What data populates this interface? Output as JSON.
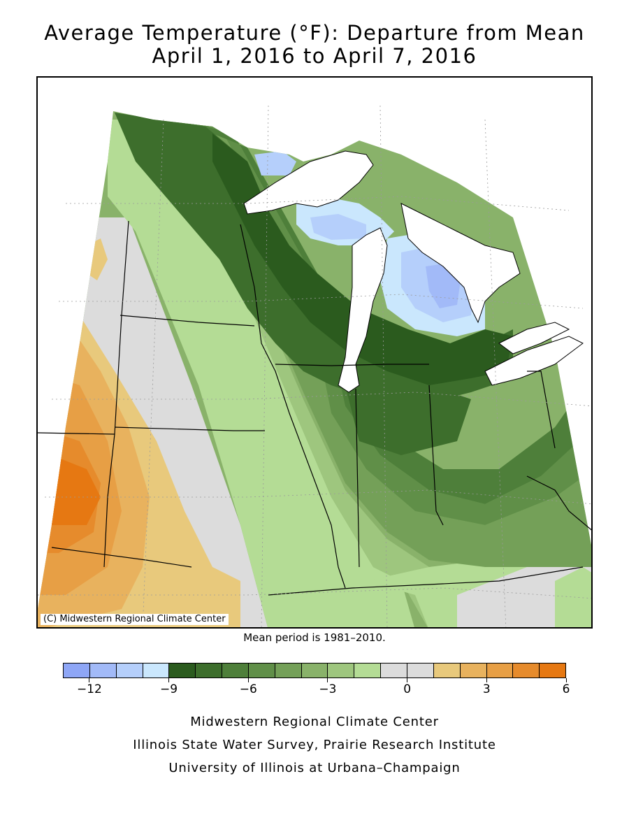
{
  "title": {
    "line1": "Average Temperature (°F): Departure from Mean",
    "line2": "April 1, 2016 to April 7, 2016"
  },
  "map": {
    "copyright": "(C) Midwestern Regional Climate Center",
    "mean_period": "Mean period is 1981–2010."
  },
  "legend": {
    "colors": [
      "#8ea6f6",
      "#a2baf8",
      "#b5cffb",
      "#cae7fd",
      "#2b5b1e",
      "#3d6e2c",
      "#4e7f3a",
      "#608f48",
      "#74a058",
      "#89b26a",
      "#9ec67e",
      "#b4dc95",
      "#dcdcdc",
      "#dcdcdc",
      "#e8c97c",
      "#e8b25e",
      "#e79f45",
      "#e68b2c",
      "#e67812"
    ],
    "ticks": [
      {
        "value": -12,
        "label": "−12"
      },
      {
        "value": -9,
        "label": "−9"
      },
      {
        "value": -6,
        "label": "−6"
      },
      {
        "value": -3,
        "label": "−3"
      },
      {
        "value": 0,
        "label": "0"
      },
      {
        "value": 3,
        "label": "3"
      },
      {
        "value": 6,
        "label": "6"
      }
    ]
  },
  "credits": {
    "line1": "Midwestern Regional Climate Center",
    "line2": "Illinois State Water Survey, Prairie Research Institute",
    "line3": "University of Illinois at Urbana–Champaign"
  }
}
